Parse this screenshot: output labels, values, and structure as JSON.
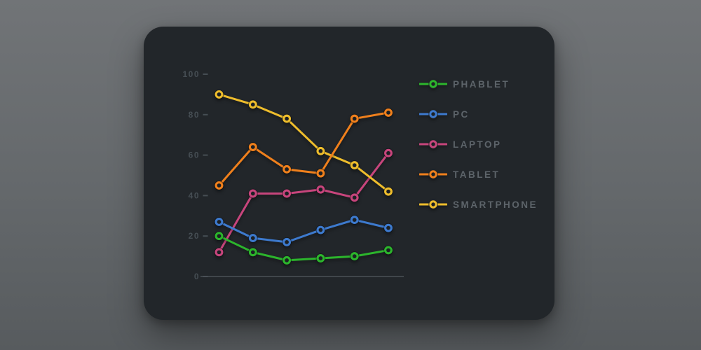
{
  "colors": {
    "page_background_top": "#717477",
    "page_background_bottom": "#575b5e",
    "card_background": "#22262a",
    "axis_text": "#464e54",
    "axis_line": "#4b5156",
    "legend_text": "#5d646a",
    "marker_center": "#1c2024"
  },
  "chart_data": {
    "type": "line",
    "title": "",
    "xlabel": "",
    "ylabel": "",
    "x_count": 6,
    "ylim": [
      0,
      100
    ],
    "yticks": [
      0,
      20,
      40,
      60,
      80,
      100
    ],
    "ytick_labels": [
      "0",
      "20",
      "40",
      "60",
      "80",
      "100"
    ],
    "grid": false,
    "legend_position": "right",
    "marker_style": "ring",
    "series": [
      {
        "name": "PHABLET",
        "color": "#2cb52c",
        "values": [
          20,
          12,
          8,
          9,
          10,
          13
        ]
      },
      {
        "name": "PC",
        "color": "#3d7ace",
        "values": [
          27,
          19,
          17,
          23,
          28,
          24
        ]
      },
      {
        "name": "LAPTOP",
        "color": "#c7457c",
        "values": [
          12,
          41,
          41,
          43,
          39,
          61
        ]
      },
      {
        "name": "TABLET",
        "color": "#f0801c",
        "values": [
          45,
          64,
          53,
          51,
          78,
          81
        ]
      },
      {
        "name": "SMARTPHONE",
        "color": "#eebd2c",
        "values": [
          90,
          85,
          78,
          62,
          55,
          42
        ]
      }
    ],
    "draw_order": [
      "LAPTOP",
      "SMARTPHONE",
      "TABLET",
      "PC",
      "PHABLET"
    ]
  }
}
